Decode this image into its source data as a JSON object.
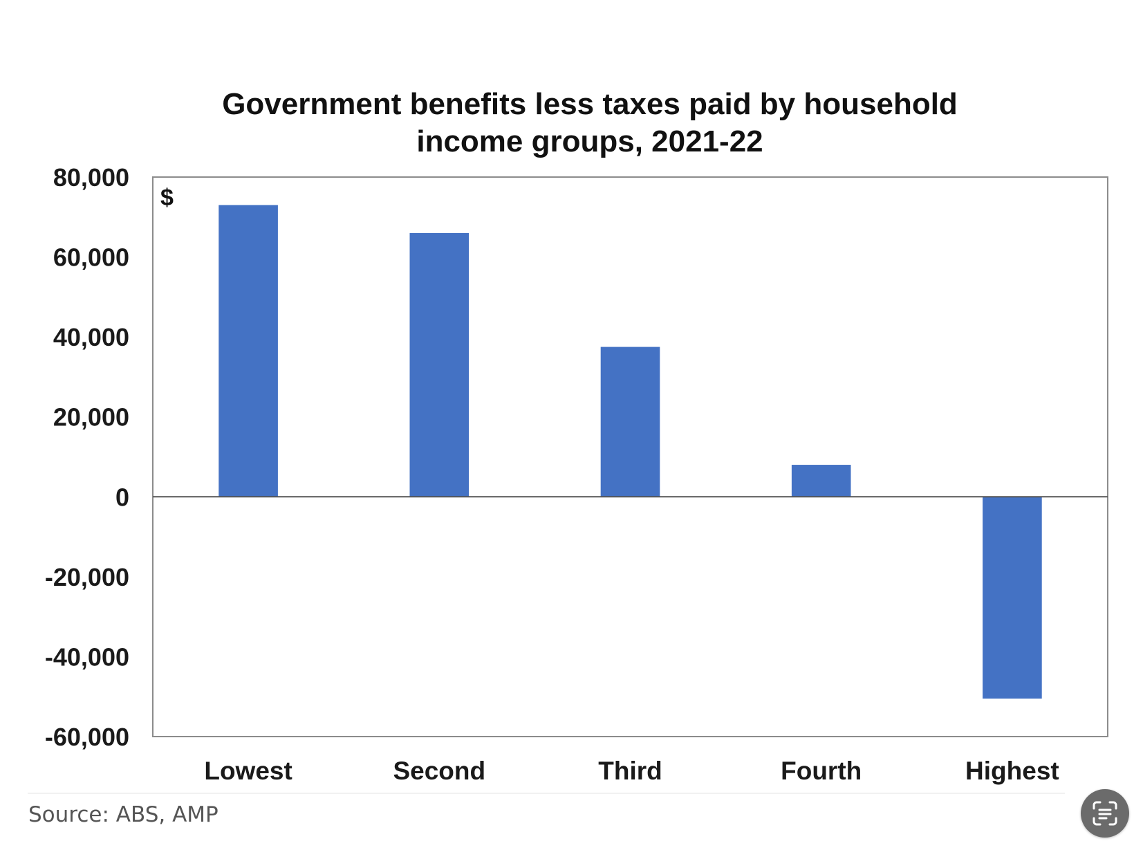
{
  "chart_data": {
    "type": "bar",
    "title_lines": [
      "Government benefits less taxes paid by household",
      "income groups, 2021-22"
    ],
    "unit_label": "$",
    "categories": [
      "Lowest",
      "Second",
      "Third",
      "Fourth",
      "Highest"
    ],
    "values": [
      73000,
      66000,
      37500,
      8000,
      -50500
    ],
    "ylim": [
      -60000,
      80000
    ],
    "yticks": [
      80000,
      60000,
      40000,
      20000,
      0,
      -20000,
      -40000,
      -60000
    ],
    "ytick_labels": [
      "80,000",
      "60,000",
      "40,000",
      "20,000",
      "0",
      "-20,000",
      "-40,000",
      "-60,000"
    ],
    "grid": false,
    "legend": "none",
    "bar_color": "#4472c4"
  },
  "source": {
    "text": "Source: ABS, AMP"
  },
  "controls": {
    "scan_icon": "text-scan-icon"
  }
}
